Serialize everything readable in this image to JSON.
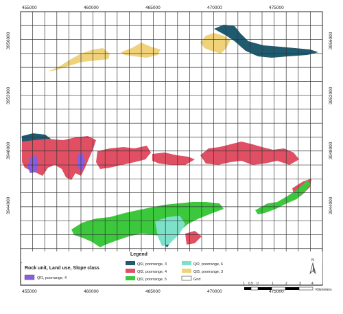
{
  "map": {
    "x_ticks": [
      "455000",
      "460000",
      "465000",
      "470000",
      "475000"
    ],
    "y_ticks": [
      "3956000",
      "3952000",
      "3948000",
      "3944000"
    ],
    "grid_cols": 25,
    "grid_rows": 18
  },
  "legend": {
    "title": "Legend",
    "subtitle": "Rock unit, Land use, Slope class",
    "items": [
      {
        "label": "Qf1, poorrange, 4",
        "color": "#8a5ce0"
      },
      {
        "label": "Qf2, poorrange, 3",
        "color": "#1f5a6e"
      },
      {
        "label": "Qf2, poorrange, 4",
        "color": "#e04f63"
      },
      {
        "label": "Qf2, poorrange, 5",
        "color": "#3cc83c"
      },
      {
        "label": "Qf2, poorrange, 6",
        "color": "#7de0c8"
      },
      {
        "label": "Qf3, poorrange, 3",
        "color": "#f0d27a"
      },
      {
        "label": "Grid",
        "color": "#ffffff"
      }
    ]
  },
  "scalebar": {
    "labels": [
      "1",
      "0.5",
      "0",
      "1",
      "2",
      "3",
      "4"
    ],
    "unit": "Kilometers"
  },
  "north_arrow": {
    "label": "N"
  }
}
